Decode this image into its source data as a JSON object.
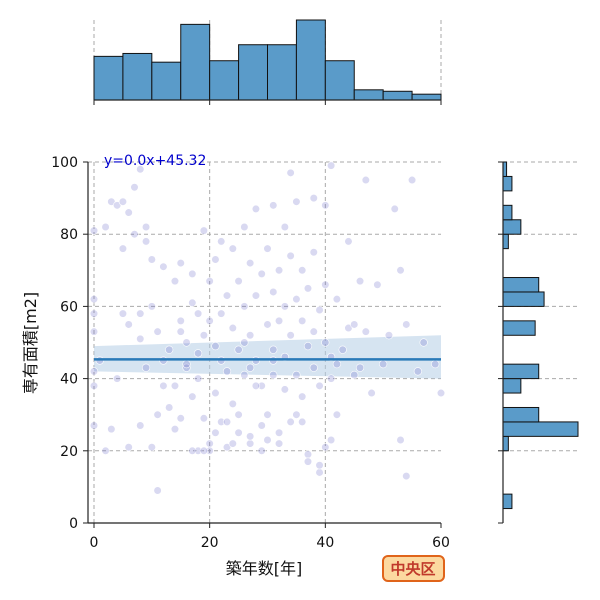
{
  "chart_data": {
    "type": "scatter",
    "title": "",
    "xlabel": "築年数[年]",
    "ylabel": "専有面積[m2]",
    "xlim": [
      -1,
      60
    ],
    "ylim": [
      0,
      100
    ],
    "xticks": [
      0,
      20,
      40,
      60
    ],
    "yticks": [
      0,
      20,
      40,
      60,
      80,
      100
    ],
    "grid": true,
    "annotation": "y=0.0x+45.32",
    "badge": "中央区",
    "regression": {
      "slope": 0.0,
      "intercept": 45.32,
      "ci_low_left": 42,
      "ci_high_left": 49,
      "ci_low_right": 40,
      "ci_high_right": 52
    },
    "points": [
      [
        0,
        81
      ],
      [
        0,
        62
      ],
      [
        0,
        58
      ],
      [
        0,
        53
      ],
      [
        0,
        42
      ],
      [
        0,
        38
      ],
      [
        0,
        27
      ],
      [
        1,
        45
      ],
      [
        2,
        82
      ],
      [
        3,
        89
      ],
      [
        4,
        88
      ],
      [
        5,
        89
      ],
      [
        5,
        76
      ],
      [
        5,
        58
      ],
      [
        6,
        86
      ],
      [
        6,
        55
      ],
      [
        7,
        93
      ],
      [
        7,
        80
      ],
      [
        8,
        98
      ],
      [
        8,
        58
      ],
      [
        8,
        51
      ],
      [
        9,
        82
      ],
      [
        9,
        78
      ],
      [
        10,
        73
      ],
      [
        10,
        60
      ],
      [
        11,
        53
      ],
      [
        11,
        30
      ],
      [
        12,
        71
      ],
      [
        12,
        45
      ],
      [
        13,
        48
      ],
      [
        13,
        32
      ],
      [
        14,
        67
      ],
      [
        14,
        38
      ],
      [
        15,
        72
      ],
      [
        15,
        56
      ],
      [
        15,
        29
      ],
      [
        16,
        50
      ],
      [
        16,
        43
      ],
      [
        17,
        69
      ],
      [
        17,
        61
      ],
      [
        17,
        35
      ],
      [
        18,
        58
      ],
      [
        18,
        47
      ],
      [
        18,
        20
      ],
      [
        19,
        81
      ],
      [
        19,
        52
      ],
      [
        19,
        29
      ],
      [
        20,
        67
      ],
      [
        20,
        56
      ],
      [
        20,
        22
      ],
      [
        21,
        73
      ],
      [
        21,
        49
      ],
      [
        21,
        36
      ],
      [
        22,
        78
      ],
      [
        22,
        58
      ],
      [
        22,
        28
      ],
      [
        23,
        63
      ],
      [
        23,
        42
      ],
      [
        23,
        21
      ],
      [
        24,
        76
      ],
      [
        24,
        54
      ],
      [
        24,
        33
      ],
      [
        25,
        67
      ],
      [
        25,
        48
      ],
      [
        25,
        25
      ],
      [
        26,
        82
      ],
      [
        26,
        60
      ],
      [
        26,
        41
      ],
      [
        27,
        72
      ],
      [
        27,
        52
      ],
      [
        27,
        22
      ],
      [
        28,
        87
      ],
      [
        28,
        63
      ],
      [
        28,
        45
      ],
      [
        29,
        69
      ],
      [
        29,
        38
      ],
      [
        29,
        20
      ],
      [
        30,
        76
      ],
      [
        30,
        55
      ],
      [
        30,
        30
      ],
      [
        31,
        88
      ],
      [
        31,
        64
      ],
      [
        31,
        48
      ],
      [
        32,
        70
      ],
      [
        32,
        56
      ],
      [
        32,
        25
      ],
      [
        33,
        82
      ],
      [
        33,
        60
      ],
      [
        33,
        37
      ],
      [
        34,
        97
      ],
      [
        34,
        74
      ],
      [
        34,
        52
      ],
      [
        35,
        89
      ],
      [
        35,
        62
      ],
      [
        35,
        41
      ],
      [
        36,
        70
      ],
      [
        36,
        56
      ],
      [
        36,
        28
      ],
      [
        37,
        65
      ],
      [
        37,
        49
      ],
      [
        37,
        19
      ],
      [
        38,
        90
      ],
      [
        38,
        75
      ],
      [
        38,
        53
      ],
      [
        39,
        59
      ],
      [
        39,
        38
      ],
      [
        39,
        14
      ],
      [
        40,
        88
      ],
      [
        40,
        66
      ],
      [
        40,
        50
      ],
      [
        41,
        99
      ],
      [
        41,
        46
      ],
      [
        41,
        23
      ],
      [
        42,
        62
      ],
      [
        42,
        30
      ],
      [
        43,
        48
      ],
      [
        44,
        78
      ],
      [
        44,
        54
      ],
      [
        45,
        55
      ],
      [
        45,
        41
      ],
      [
        46,
        67
      ],
      [
        47,
        95
      ],
      [
        47,
        53
      ],
      [
        48,
        36
      ],
      [
        49,
        66
      ],
      [
        50,
        44
      ],
      [
        51,
        52
      ],
      [
        52,
        87
      ],
      [
        53,
        70
      ],
      [
        53,
        23
      ],
      [
        54,
        55
      ],
      [
        54,
        13
      ],
      [
        55,
        95
      ],
      [
        56,
        42
      ],
      [
        57,
        50
      ],
      [
        59,
        44
      ],
      [
        60,
        36
      ],
      [
        10,
        21
      ],
      [
        11,
        9
      ],
      [
        20,
        20
      ],
      [
        25,
        30
      ],
      [
        30,
        23
      ],
      [
        35,
        30
      ],
      [
        15,
        53
      ],
      [
        22,
        45
      ],
      [
        28,
        38
      ],
      [
        33,
        46
      ],
      [
        38,
        43
      ],
      [
        41,
        40
      ],
      [
        12,
        38
      ],
      [
        18,
        40
      ],
      [
        26,
        50
      ],
      [
        31,
        41
      ],
      [
        36,
        35
      ],
      [
        2,
        20
      ],
      [
        6,
        21
      ],
      [
        17,
        20
      ],
      [
        19,
        20
      ],
      [
        24,
        22
      ],
      [
        27,
        24
      ],
      [
        32,
        22
      ],
      [
        37,
        17
      ],
      [
        39,
        16
      ],
      [
        40,
        21
      ],
      [
        3,
        26
      ],
      [
        8,
        27
      ],
      [
        14,
        26
      ],
      [
        21,
        25
      ],
      [
        23,
        28
      ],
      [
        29,
        27
      ],
      [
        34,
        28
      ],
      [
        4,
        40
      ],
      [
        9,
        43
      ],
      [
        16,
        44
      ],
      [
        27,
        43
      ],
      [
        31,
        45
      ],
      [
        42,
        44
      ],
      [
        46,
        43
      ]
    ],
    "hist_x": {
      "bins": [
        0,
        5,
        10,
        15,
        20,
        25,
        30,
        35,
        40,
        45,
        50,
        55,
        60
      ],
      "counts": [
        30,
        32,
        26,
        52,
        27,
        38,
        38,
        55,
        27,
        7,
        6,
        4,
        2
      ]
    },
    "hist_y": {
      "bins": [
        0,
        4,
        8,
        12,
        16,
        20,
        24,
        28,
        32,
        36,
        40,
        44,
        48,
        52,
        56,
        60,
        64,
        68,
        72,
        76,
        80,
        84,
        88,
        92,
        96,
        100
      ],
      "counts": [
        0,
        5,
        0,
        0,
        0,
        3,
        42,
        20,
        0,
        10,
        20,
        0,
        0,
        18,
        0,
        23,
        20,
        0,
        0,
        3,
        10,
        5,
        0,
        5,
        2
      ]
    }
  }
}
